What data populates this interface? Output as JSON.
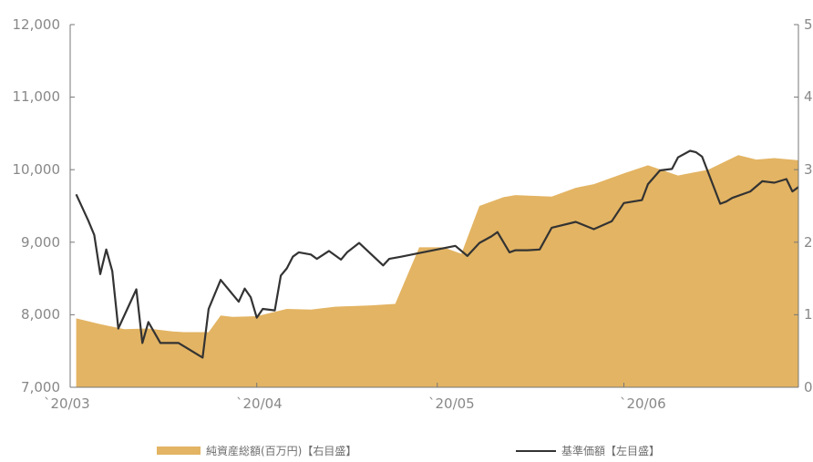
{
  "chart_data": {
    "type": "line",
    "title": "",
    "xlabel": "",
    "ylabel": "",
    "x_tick_labels": [
      "`20/03",
      "`20/04",
      "`20/05",
      "`20/06"
    ],
    "y_left": {
      "range": [
        7000,
        12000
      ],
      "tick_labels": [
        "12,000",
        "11,000",
        "10,000",
        "9,000",
        "8,000",
        "7,000"
      ]
    },
    "y_right": {
      "range": [
        0,
        5
      ],
      "tick_labels": [
        "5",
        "4",
        "3",
        "2",
        "1",
        "0"
      ]
    },
    "grid": false,
    "legend": "bottom",
    "series": [
      {
        "name": "純資産総額(百万円)【右目盛】",
        "kind": "area",
        "axis": "right",
        "color": "#e3b463",
        "x": [
          "2020-03-02",
          "2020-03-06",
          "2020-03-10",
          "2020-03-14",
          "2020-03-18",
          "2020-03-20",
          "2020-03-24",
          "2020-03-26",
          "2020-03-28",
          "2020-04-01",
          "2020-04-06",
          "2020-04-10",
          "2020-04-14",
          "2020-04-20",
          "2020-04-24",
          "2020-04-28",
          "2020-05-02",
          "2020-05-05",
          "2020-05-08",
          "2020-05-12",
          "2020-05-14",
          "2020-05-20",
          "2020-05-24",
          "2020-05-27",
          "2020-06-01",
          "2020-06-05",
          "2020-06-10",
          "2020-06-15",
          "2020-06-20",
          "2020-06-23",
          "2020-06-26",
          "2020-06-30"
        ],
        "values": [
          0.95,
          0.87,
          0.8,
          0.81,
          0.77,
          0.76,
          0.76,
          0.99,
          0.97,
          0.98,
          1.08,
          1.07,
          1.11,
          1.13,
          1.15,
          1.93,
          1.93,
          1.84,
          2.5,
          2.62,
          2.65,
          2.63,
          2.75,
          2.8,
          2.95,
          3.06,
          2.92,
          3.0,
          3.2,
          3.14,
          3.16,
          3.13
        ]
      },
      {
        "name": "基準価額【左目盛】",
        "kind": "line",
        "axis": "left",
        "color": "#333333",
        "x": [
          "2020-03-02",
          "2020-03-04",
          "2020-03-05",
          "2020-03-06",
          "2020-03-07",
          "2020-03-08",
          "2020-03-09",
          "2020-03-12",
          "2020-03-13",
          "2020-03-14",
          "2020-03-16",
          "2020-03-19",
          "2020-03-23",
          "2020-03-24",
          "2020-03-26",
          "2020-03-29",
          "2020-03-30",
          "2020-03-31",
          "2020-04-01",
          "2020-04-02",
          "2020-04-04",
          "2020-04-05",
          "2020-04-06",
          "2020-04-07",
          "2020-04-08",
          "2020-04-10",
          "2020-04-11",
          "2020-04-13",
          "2020-04-15",
          "2020-04-16",
          "2020-04-18",
          "2020-04-22",
          "2020-04-23",
          "2020-04-25",
          "2020-04-28",
          "2020-05-04",
          "2020-05-06",
          "2020-05-08",
          "2020-05-10",
          "2020-05-11",
          "2020-05-13",
          "2020-05-14",
          "2020-05-16",
          "2020-05-18",
          "2020-05-20",
          "2020-05-24",
          "2020-05-27",
          "2020-05-30",
          "2020-06-01",
          "2020-06-04",
          "2020-06-05",
          "2020-06-07",
          "2020-06-09",
          "2020-06-10",
          "2020-06-12",
          "2020-06-13",
          "2020-06-14",
          "2020-06-17",
          "2020-06-18",
          "2020-06-19",
          "2020-06-22",
          "2020-06-24",
          "2020-06-25",
          "2020-06-26",
          "2020-06-28",
          "2020-06-29",
          "2020-06-30"
        ],
        "values": [
          9660,
          9300,
          9100,
          8560,
          8900,
          8600,
          7810,
          8350,
          7610,
          7900,
          7610,
          7610,
          7410,
          8080,
          8480,
          8180,
          8360,
          8240,
          7960,
          8080,
          8060,
          8540,
          8640,
          8800,
          8860,
          8830,
          8770,
          8880,
          8760,
          8860,
          8990,
          8680,
          8770,
          8800,
          8850,
          8950,
          8810,
          8990,
          9080,
          9140,
          8860,
          8890,
          8890,
          8900,
          9200,
          9280,
          9180,
          9290,
          9540,
          9580,
          9800,
          9990,
          10010,
          10170,
          10260,
          10240,
          10180,
          9530,
          9560,
          9610,
          9700,
          9840,
          9830,
          9820,
          9870,
          9700,
          9760
        ]
      }
    ]
  }
}
